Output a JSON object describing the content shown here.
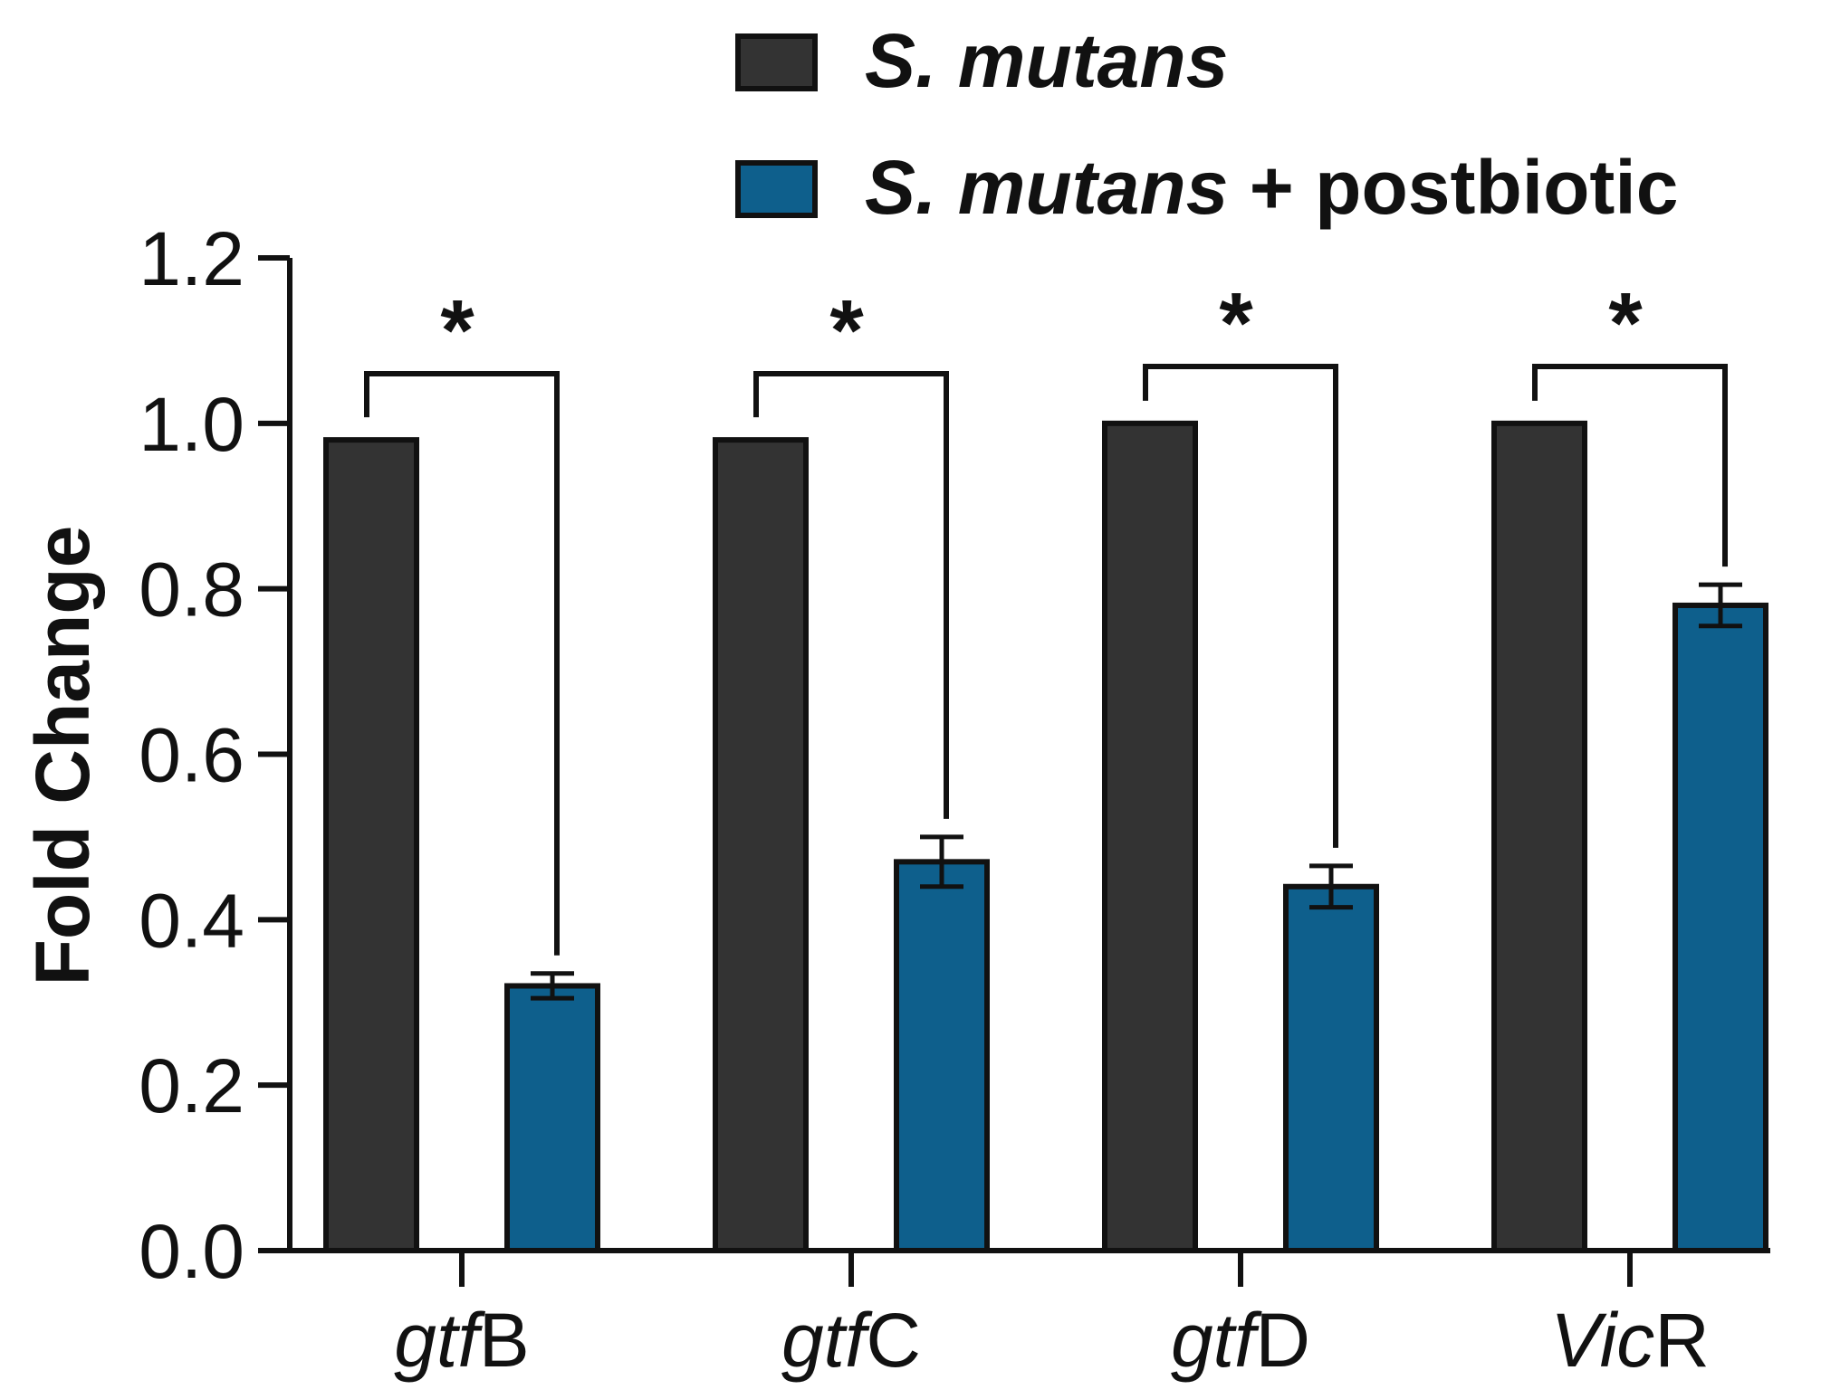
{
  "chart_data": {
    "type": "bar",
    "ylabel": "Fold Change",
    "xlabel": "",
    "ylim": [
      0,
      1.2
    ],
    "yticks": [
      "0.0",
      "0.2",
      "0.4",
      "0.6",
      "0.8",
      "1.0",
      "1.2"
    ],
    "categories": [
      {
        "italic": "gtf",
        "plain": "B"
      },
      {
        "italic": "gtf",
        "plain": "C"
      },
      {
        "italic": "gtf",
        "plain": "D"
      },
      {
        "italic": "Vic",
        "plain": "R"
      }
    ],
    "series": [
      {
        "name_italic": "S. mutans",
        "name_plain": "",
        "color": "#333333",
        "values": [
          0.98,
          0.98,
          1.0,
          1.0
        ],
        "errors": [
          0,
          0,
          0,
          0
        ]
      },
      {
        "name_italic": "S. mutans",
        "name_plain": " + postbiotic",
        "color": "#0e5f8c",
        "values": [
          0.32,
          0.47,
          0.44,
          0.78
        ],
        "errors": [
          0.015,
          0.03,
          0.025,
          0.025
        ]
      }
    ],
    "significance": [
      "*",
      "*",
      "*",
      "*"
    ],
    "legend_position": "top-right"
  }
}
